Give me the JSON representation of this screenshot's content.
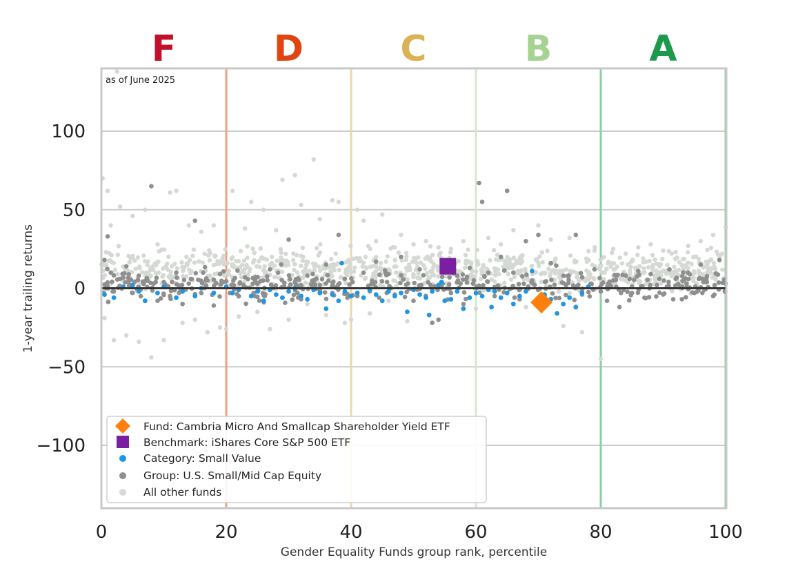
{
  "chart_data": {
    "type": "scatter",
    "xlabel": "Gender Equality Funds group rank, percentile",
    "ylabel": "1-year trailing returns",
    "annotation": "as of June 2025",
    "xlim": [
      0,
      100
    ],
    "ylim": [
      -140,
      140
    ],
    "xticks": [
      0,
      20,
      40,
      60,
      80,
      100
    ],
    "yticks": [
      -100,
      -50,
      0,
      50,
      100
    ],
    "ytick_labels": [
      "−100",
      "−50",
      "0",
      "50",
      "100"
    ],
    "grid": "horizontal",
    "grades": [
      {
        "letter": "F",
        "center": 10,
        "color": "#c0102a"
      },
      {
        "letter": "D",
        "center": 30,
        "color": "#e0450f"
      },
      {
        "letter": "C",
        "center": 50,
        "color": "#dcb257"
      },
      {
        "letter": "B",
        "center": 70,
        "color": "#a6d393"
      },
      {
        "letter": "A",
        "center": 90,
        "color": "#1c9a4b"
      }
    ],
    "grade_boundaries": [
      {
        "x": 20,
        "color": "#ef9f86"
      },
      {
        "x": 40,
        "color": "#eed7a6"
      },
      {
        "x": 60,
        "color": "#d3eacb"
      },
      {
        "x": 80,
        "color": "#8ccfa0"
      },
      {
        "x": 100,
        "color": "#8ccfa0"
      }
    ],
    "zero_line": 0,
    "legend_position": "lower-left",
    "series": [
      {
        "name": "Fund: Cambria Micro And Smallcap Shareholder Yield ETF",
        "marker": "diamond",
        "color": "#ff7f0e",
        "points": [
          [
            70.5,
            -9
          ]
        ]
      },
      {
        "name": "Benchmark: iShares Core S&P 500 ETF",
        "marker": "square",
        "color": "#7b1fa2",
        "points": [
          [
            55.5,
            14
          ]
        ]
      },
      {
        "name": "Category: Small Value",
        "marker": "dot",
        "color": "#1e96e6",
        "points": [
          [
            0.5,
            -4
          ],
          [
            2,
            -6
          ],
          [
            3.5,
            1
          ],
          [
            5,
            2
          ],
          [
            6,
            -2
          ],
          [
            7,
            -8
          ],
          [
            9,
            -3
          ],
          [
            10,
            1
          ],
          [
            12,
            -6
          ],
          [
            13,
            -2
          ],
          [
            15,
            -5
          ],
          [
            16,
            0
          ],
          [
            18,
            -3
          ],
          [
            20,
            1
          ],
          [
            21,
            -3
          ],
          [
            22,
            -1
          ],
          [
            24,
            -5
          ],
          [
            25,
            -2
          ],
          [
            26,
            -8
          ],
          [
            27,
            -1
          ],
          [
            28,
            -4
          ],
          [
            29,
            -6
          ],
          [
            30,
            -2
          ],
          [
            31,
            0
          ],
          [
            32,
            -5
          ],
          [
            33,
            -7
          ],
          [
            34,
            -1
          ],
          [
            35,
            -3
          ],
          [
            36,
            -13
          ],
          [
            37,
            -4
          ],
          [
            38,
            -8
          ],
          [
            38.5,
            16
          ],
          [
            39,
            -2
          ],
          [
            40,
            -5
          ],
          [
            41,
            -3
          ],
          [
            42,
            -6
          ],
          [
            43,
            -1
          ],
          [
            44,
            -4
          ],
          [
            45,
            -8
          ],
          [
            46,
            -2
          ],
          [
            47,
            -5
          ],
          [
            48,
            -3
          ],
          [
            49,
            -15
          ],
          [
            50,
            -1
          ],
          [
            51,
            -4
          ],
          [
            52,
            -6
          ],
          [
            52.5,
            -17
          ],
          [
            53,
            -2
          ],
          [
            54,
            2
          ],
          [
            54.5,
            4
          ],
          [
            55,
            -8
          ],
          [
            56,
            -7
          ],
          [
            57,
            -2
          ],
          [
            58,
            -13
          ],
          [
            59,
            -6
          ],
          [
            60,
            -3
          ],
          [
            61,
            -5
          ],
          [
            62,
            -1
          ],
          [
            62.5,
            -12
          ],
          [
            63,
            -2
          ],
          [
            64,
            -6
          ],
          [
            65,
            -3
          ],
          [
            66,
            -10
          ],
          [
            67,
            -5
          ],
          [
            68,
            -2
          ],
          [
            69,
            11
          ],
          [
            71,
            -4
          ],
          [
            72,
            -7
          ],
          [
            73,
            -16
          ],
          [
            74,
            -10
          ],
          [
            75,
            -6
          ],
          [
            76,
            -12
          ],
          [
            77,
            -3
          ],
          [
            78,
            1
          ]
        ]
      },
      {
        "name": "Group: U.S. Small/Mid Cap Equity",
        "marker": "dot",
        "color": "#8f8f8f",
        "points": [
          [
            0.5,
            18
          ],
          [
            1,
            33
          ],
          [
            1.5,
            10
          ],
          [
            2,
            -2
          ],
          [
            3,
            6
          ],
          [
            4,
            14
          ],
          [
            5,
            -3
          ],
          [
            6,
            8
          ],
          [
            8,
            65
          ],
          [
            9,
            -8
          ],
          [
            10,
            4
          ],
          [
            11,
            -5
          ],
          [
            12,
            10
          ],
          [
            13,
            -10
          ],
          [
            14,
            3
          ],
          [
            15,
            43
          ],
          [
            16,
            -3
          ],
          [
            17,
            5
          ],
          [
            18,
            -11
          ],
          [
            19,
            9
          ],
          [
            22,
            -5
          ],
          [
            23,
            7
          ],
          [
            25,
            3
          ],
          [
            27,
            12
          ],
          [
            29,
            -6
          ],
          [
            30,
            31
          ],
          [
            31,
            4
          ],
          [
            32,
            -7
          ],
          [
            33,
            8
          ],
          [
            35,
            -1
          ],
          [
            36,
            15
          ],
          [
            37,
            -3
          ],
          [
            38,
            34
          ],
          [
            39,
            6
          ],
          [
            41,
            -5
          ],
          [
            42,
            10
          ],
          [
            43,
            -2
          ],
          [
            44,
            17
          ],
          [
            46,
            9
          ],
          [
            47,
            -4
          ],
          [
            48,
            20
          ],
          [
            50,
            -8
          ],
          [
            51,
            12
          ],
          [
            53,
            -22
          ],
          [
            54,
            -20
          ],
          [
            55,
            17
          ],
          [
            56,
            -3
          ],
          [
            57,
            8
          ],
          [
            58,
            -10
          ],
          [
            59,
            13
          ],
          [
            60.5,
            67
          ],
          [
            61,
            55
          ],
          [
            62,
            10
          ],
          [
            63,
            -5
          ],
          [
            64,
            20
          ],
          [
            65,
            62
          ],
          [
            66,
            10
          ],
          [
            67,
            -7
          ],
          [
            68,
            30
          ],
          [
            69,
            5
          ],
          [
            70,
            34
          ],
          [
            71,
            -5
          ],
          [
            72,
            16
          ],
          [
            74,
            8
          ],
          [
            76,
            34
          ],
          [
            77,
            -4
          ],
          [
            79,
            12
          ],
          [
            80,
            -2
          ],
          [
            81,
            -8
          ],
          [
            82,
            5
          ],
          [
            83,
            -12
          ],
          [
            84,
            8
          ],
          [
            85,
            -3
          ],
          [
            86,
            11
          ],
          [
            87,
            -6
          ],
          [
            88,
            9
          ],
          [
            89,
            2
          ],
          [
            90,
            -4
          ],
          [
            91,
            12
          ],
          [
            92,
            6
          ],
          [
            93,
            -7
          ],
          [
            94,
            10
          ],
          [
            95,
            -3
          ],
          [
            96,
            15
          ],
          [
            97,
            4
          ],
          [
            98,
            -5
          ],
          [
            99,
            18
          ],
          [
            100,
            3
          ]
        ]
      },
      {
        "name": "All other funds",
        "marker": "dot",
        "color": "#d4d9d3",
        "points": [
          [
            0.2,
            70
          ],
          [
            0.5,
            -19
          ],
          [
            1,
            62
          ],
          [
            1.5,
            40
          ],
          [
            2,
            -33
          ],
          [
            2.5,
            138
          ],
          [
            3,
            52
          ],
          [
            4,
            -30
          ],
          [
            5,
            46
          ],
          [
            6,
            -34
          ],
          [
            7,
            50
          ],
          [
            8,
            -44
          ],
          [
            9,
            28
          ],
          [
            10,
            -33
          ],
          [
            11,
            61
          ],
          [
            12,
            62
          ],
          [
            13,
            -22
          ],
          [
            14,
            40
          ],
          [
            15,
            -20
          ],
          [
            16,
            36
          ],
          [
            17,
            -28
          ],
          [
            18,
            40
          ],
          [
            19,
            -25
          ],
          [
            20,
            -26
          ],
          [
            21,
            62
          ],
          [
            22,
            -18
          ],
          [
            23,
            38
          ],
          [
            24,
            55
          ],
          [
            25,
            -15
          ],
          [
            26,
            50
          ],
          [
            27,
            -26
          ],
          [
            28,
            37
          ],
          [
            29,
            69
          ],
          [
            30,
            -20
          ],
          [
            31,
            72
          ],
          [
            32,
            53
          ],
          [
            33,
            -10
          ],
          [
            34,
            82
          ],
          [
            35,
            44
          ],
          [
            36,
            -17
          ],
          [
            37,
            56
          ],
          [
            38,
            55
          ],
          [
            39,
            -22
          ],
          [
            40,
            -20
          ],
          [
            41,
            50
          ],
          [
            42,
            43
          ],
          [
            43,
            -16
          ],
          [
            44,
            30
          ],
          [
            45,
            47
          ],
          [
            46,
            -8
          ],
          [
            47,
            26
          ],
          [
            48,
            34
          ],
          [
            49,
            -21
          ],
          [
            50,
            28
          ],
          [
            52,
            30
          ],
          [
            54,
            26
          ],
          [
            56,
            25
          ],
          [
            58,
            30
          ],
          [
            60,
            -13
          ],
          [
            62,
            32
          ],
          [
            64,
            28
          ],
          [
            66,
            37
          ],
          [
            68,
            -12
          ],
          [
            70,
            40
          ],
          [
            72,
            31
          ],
          [
            74,
            -24
          ],
          [
            75,
            32
          ],
          [
            77,
            -28
          ],
          [
            79,
            24
          ],
          [
            80,
            -45
          ],
          [
            82,
            25
          ],
          [
            84,
            22
          ],
          [
            86,
            26
          ],
          [
            88,
            28
          ],
          [
            90,
            24
          ],
          [
            92,
            23
          ],
          [
            94,
            27
          ],
          [
            96,
            30
          ],
          [
            98,
            34
          ],
          [
            100,
            39
          ]
        ]
      }
    ]
  }
}
